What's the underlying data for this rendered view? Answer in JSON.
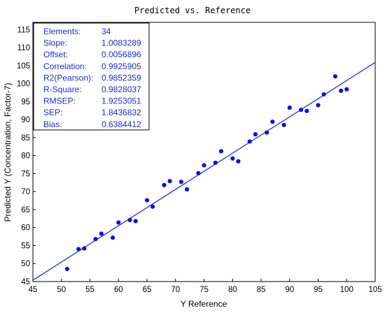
{
  "chart_data": {
    "type": "scatter",
    "title": "Predicted vs. Reference",
    "xlabel": "Y Reference",
    "ylabel": "Predicted Y (Concentration, Factor-7)",
    "xlim": [
      45,
      105
    ],
    "ylim": [
      45,
      117
    ],
    "xticks": [
      45,
      50,
      55,
      60,
      65,
      70,
      75,
      80,
      85,
      90,
      95,
      100,
      105
    ],
    "yticks": [
      45,
      50,
      55,
      60,
      65,
      70,
      75,
      80,
      85,
      90,
      95,
      100,
      105,
      110,
      115
    ],
    "grid": false,
    "point_color": "#0a10e6",
    "line_color": "#1d35d6",
    "stats_color": "#1a2fc8",
    "regression_line": {
      "slope": 1.0083289,
      "offset": 0.0056896
    },
    "stats": [
      {
        "label": "Elements:",
        "value": "34"
      },
      {
        "label": "Slope:",
        "value": "1.0083289"
      },
      {
        "label": "Offset:",
        "value": "0.0056896"
      },
      {
        "label": "Correlation:",
        "value": "0.9925905"
      },
      {
        "label": "R2(Pearson):",
        "value": "0.9852359"
      },
      {
        "label": "R-Square:",
        "value": "0.9828037"
      },
      {
        "label": "RMSEP:",
        "value": "1.9253051"
      },
      {
        "label": "SEP:",
        "value": "1.8436832"
      },
      {
        "label": "Bias:",
        "value": "0.6384412"
      }
    ],
    "points": [
      [
        51,
        48.5
      ],
      [
        53,
        54
      ],
      [
        54,
        54.2
      ],
      [
        56,
        56.8
      ],
      [
        57,
        58.3
      ],
      [
        59,
        57.2
      ],
      [
        60,
        61.4
      ],
      [
        62,
        62.1
      ],
      [
        63,
        61.8
      ],
      [
        65,
        67.6
      ],
      [
        66,
        65.8
      ],
      [
        68,
        71.8
      ],
      [
        69,
        72.9
      ],
      [
        71,
        72.7
      ],
      [
        72,
        70.6
      ],
      [
        74,
        75.1
      ],
      [
        75,
        77.3
      ],
      [
        77,
        78
      ],
      [
        78,
        81.2
      ],
      [
        80,
        79.2
      ],
      [
        81,
        78.4
      ],
      [
        83,
        83.9
      ],
      [
        84,
        85.9
      ],
      [
        86,
        86.4
      ],
      [
        87,
        89.4
      ],
      [
        89,
        88.5
      ],
      [
        90,
        93.3
      ],
      [
        92,
        92.7
      ],
      [
        93,
        92.4
      ],
      [
        95,
        94
      ],
      [
        96,
        97
      ],
      [
        98,
        102
      ],
      [
        99,
        98
      ],
      [
        100,
        98.4
      ]
    ]
  }
}
